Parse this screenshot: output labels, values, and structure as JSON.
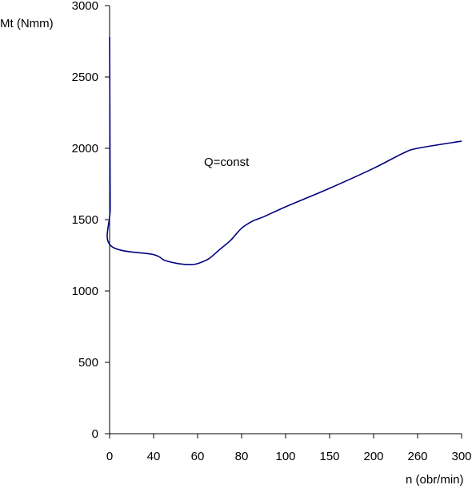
{
  "chart_data": {
    "type": "line",
    "title": "",
    "xlabel": "n (obr/min)",
    "ylabel": "Mt (Nmm)",
    "x_categories": [
      "0",
      "40",
      "60",
      "80",
      "100",
      "150",
      "200",
      "260",
      "300"
    ],
    "ylim": [
      0,
      3000
    ],
    "yticks": [
      0,
      500,
      1000,
      1500,
      2000,
      2500,
      3000
    ],
    "annotation": "Q=const",
    "grid": false,
    "series": [
      {
        "color": "#000080",
        "points": [
          {
            "x": "0",
            "y": 2780
          },
          {
            "x": "0.15",
            "y": 2520
          },
          {
            "x": "0.35",
            "y": 2020
          },
          {
            "x": "0.55",
            "y": 1580
          },
          {
            "x": "0.75",
            "y": 1320
          },
          {
            "x": "40",
            "y": 1255
          },
          {
            "x": "45",
            "y": 1215
          },
          {
            "x": "52",
            "y": 1190
          },
          {
            "x": "57",
            "y": 1185
          },
          {
            "x": "60",
            "y": 1192
          },
          {
            "x": "65",
            "y": 1225
          },
          {
            "x": "70",
            "y": 1290
          },
          {
            "x": "75",
            "y": 1355
          },
          {
            "x": "80",
            "y": 1440
          },
          {
            "x": "85",
            "y": 1490
          },
          {
            "x": "90",
            "y": 1520
          },
          {
            "x": "100",
            "y": 1590
          },
          {
            "x": "150",
            "y": 1720
          },
          {
            "x": "200",
            "y": 1860
          },
          {
            "x": "240",
            "y": 1965
          },
          {
            "x": "260",
            "y": 2000
          },
          {
            "x": "300",
            "y": 2050
          }
        ]
      }
    ]
  }
}
